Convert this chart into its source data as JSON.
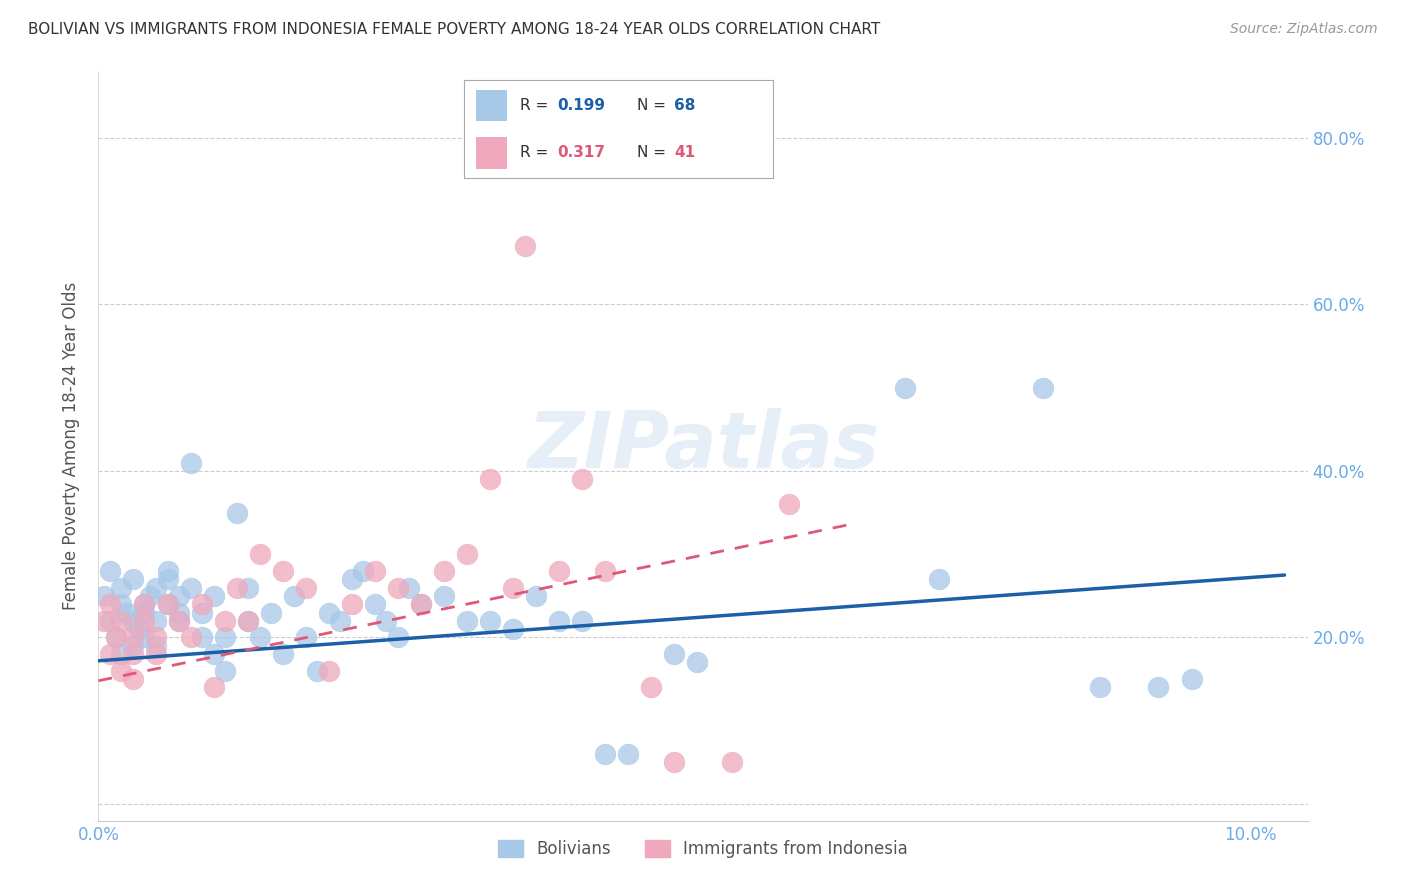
{
  "title": "BOLIVIAN VS IMMIGRANTS FROM INDONESIA FEMALE POVERTY AMONG 18-24 YEAR OLDS CORRELATION CHART",
  "source": "Source: ZipAtlas.com",
  "ylabel": "Female Poverty Among 18-24 Year Olds",
  "xlim": [
    0.0,
    0.105
  ],
  "ylim": [
    -0.02,
    0.88
  ],
  "yticks": [
    0.0,
    0.2,
    0.4,
    0.6,
    0.8
  ],
  "blue_color": "#a8c8e8",
  "pink_color": "#f0a8bc",
  "blue_line_color": "#1a5fa8",
  "pink_line_color": "#e05878",
  "axis_color": "#6aaae8",
  "grid_color": "#cccccc",
  "title_color": "#333333",
  "watermark": "ZIPatlas",
  "blue_line_x0": 0.0,
  "blue_line_y0": 0.172,
  "blue_line_x1": 0.103,
  "blue_line_y1": 0.275,
  "pink_line_x0": 0.0,
  "pink_line_y0": 0.148,
  "pink_line_x1": 0.065,
  "pink_line_y1": 0.335,
  "bolivians_x": [
    0.0005,
    0.001,
    0.001,
    0.0015,
    0.002,
    0.002,
    0.002,
    0.0025,
    0.003,
    0.003,
    0.003,
    0.0035,
    0.004,
    0.004,
    0.004,
    0.0045,
    0.005,
    0.005,
    0.005,
    0.006,
    0.006,
    0.006,
    0.007,
    0.007,
    0.007,
    0.008,
    0.008,
    0.009,
    0.009,
    0.01,
    0.01,
    0.011,
    0.011,
    0.012,
    0.013,
    0.013,
    0.014,
    0.015,
    0.016,
    0.017,
    0.018,
    0.019,
    0.02,
    0.021,
    0.022,
    0.023,
    0.024,
    0.025,
    0.026,
    0.027,
    0.028,
    0.03,
    0.032,
    0.034,
    0.036,
    0.038,
    0.04,
    0.042,
    0.044,
    0.046,
    0.05,
    0.052,
    0.07,
    0.073,
    0.082,
    0.087,
    0.092,
    0.095
  ],
  "bolivians_y": [
    0.25,
    0.22,
    0.28,
    0.2,
    0.18,
    0.24,
    0.26,
    0.23,
    0.19,
    0.22,
    0.27,
    0.21,
    0.24,
    0.2,
    0.23,
    0.25,
    0.22,
    0.26,
    0.19,
    0.24,
    0.27,
    0.28,
    0.23,
    0.25,
    0.22,
    0.41,
    0.26,
    0.2,
    0.23,
    0.18,
    0.25,
    0.2,
    0.16,
    0.35,
    0.22,
    0.26,
    0.2,
    0.23,
    0.18,
    0.25,
    0.2,
    0.16,
    0.23,
    0.22,
    0.27,
    0.28,
    0.24,
    0.22,
    0.2,
    0.26,
    0.24,
    0.25,
    0.22,
    0.22,
    0.21,
    0.25,
    0.22,
    0.22,
    0.06,
    0.06,
    0.18,
    0.17,
    0.5,
    0.27,
    0.5,
    0.14,
    0.14,
    0.15
  ],
  "indonesia_x": [
    0.0005,
    0.001,
    0.001,
    0.0015,
    0.002,
    0.002,
    0.003,
    0.003,
    0.003,
    0.004,
    0.004,
    0.005,
    0.005,
    0.006,
    0.007,
    0.008,
    0.009,
    0.01,
    0.011,
    0.012,
    0.013,
    0.014,
    0.016,
    0.018,
    0.02,
    0.022,
    0.024,
    0.026,
    0.028,
    0.03,
    0.032,
    0.034,
    0.036,
    0.037,
    0.04,
    0.042,
    0.044,
    0.048,
    0.05,
    0.055,
    0.06
  ],
  "indonesia_y": [
    0.22,
    0.18,
    0.24,
    0.2,
    0.16,
    0.22,
    0.2,
    0.18,
    0.15,
    0.22,
    0.24,
    0.18,
    0.2,
    0.24,
    0.22,
    0.2,
    0.24,
    0.14,
    0.22,
    0.26,
    0.22,
    0.3,
    0.28,
    0.26,
    0.16,
    0.24,
    0.28,
    0.26,
    0.24,
    0.28,
    0.3,
    0.39,
    0.26,
    0.67,
    0.28,
    0.39,
    0.28,
    0.14,
    0.05,
    0.05,
    0.36
  ]
}
